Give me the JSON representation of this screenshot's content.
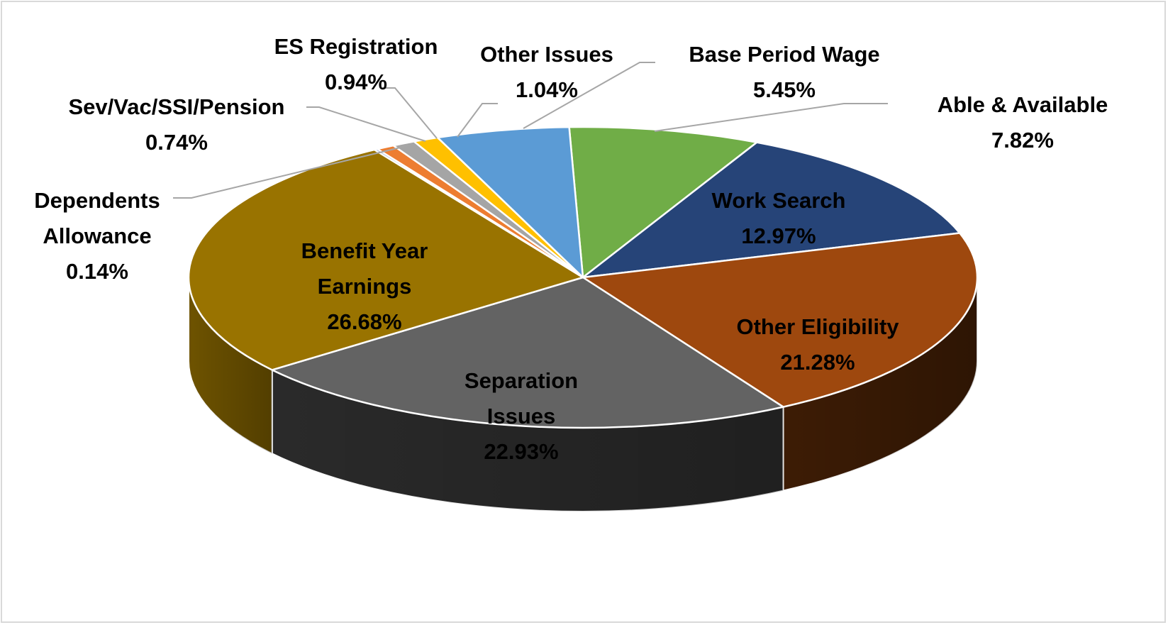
{
  "chart_data": {
    "type": "pie",
    "style": "3d",
    "title": "",
    "legend": "none",
    "slices": [
      {
        "label": "Able & Available",
        "value": 7.82,
        "display": "7.82%",
        "color": "#70ad47",
        "dark": "#3f6b25"
      },
      {
        "label": "Work Search",
        "value": 12.97,
        "display": "12.97%",
        "color": "#264478",
        "dark": "#14264a"
      },
      {
        "label": "Other Eligibility",
        "value": 21.28,
        "display": "21.28%",
        "color": "#9e480e",
        "dark": "#3d1c05"
      },
      {
        "label": "Separation Issues",
        "value": 22.93,
        "display": "22.93%",
        "color": "#636363",
        "dark": "#2a2a2a"
      },
      {
        "label": "Benefit Year Earnings",
        "value": 26.68,
        "display": "26.68%",
        "color": "#997300",
        "dark": "#6e5300"
      },
      {
        "label": "Dependents Allowance",
        "value": 0.14,
        "display": "0.14%",
        "color": "#4472c4",
        "dark": "#2a4a80"
      },
      {
        "label": "Sev/Vac/SSI/Pension",
        "value": 0.74,
        "display": "0.74%",
        "color": "#ed7d31",
        "dark": "#9a4f1c"
      },
      {
        "label": "ES Registration",
        "value": 0.94,
        "display": "0.94%",
        "color": "#a5a5a5",
        "dark": "#6b6b6b"
      },
      {
        "label": "Other Issues",
        "value": 1.04,
        "display": "1.04%",
        "color": "#ffc000",
        "dark": "#a67c00"
      },
      {
        "label": "Base Period Wage",
        "value": 5.45,
        "display": "5.45%",
        "color": "#5b9bd5",
        "dark": "#345f88"
      }
    ]
  }
}
